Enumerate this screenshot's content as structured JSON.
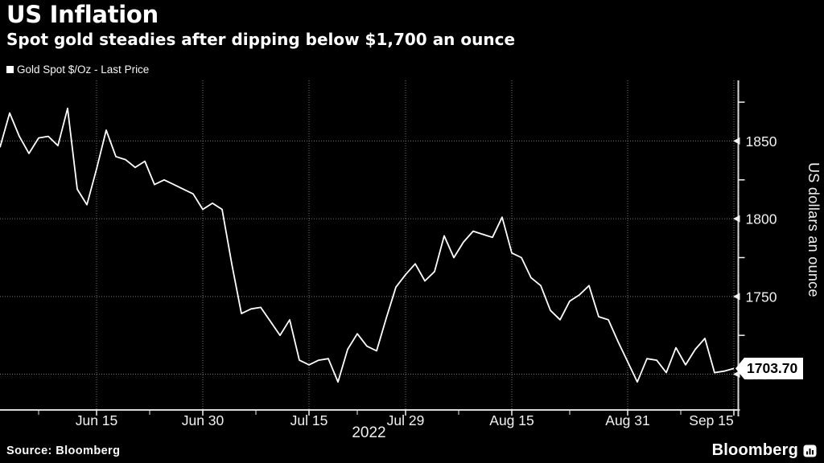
{
  "page": {
    "title": "US Inflation",
    "subtitle": "Spot gold steadies after dipping below $1,700 an ounce"
  },
  "legend": {
    "label": "Gold Spot $/Oz - Last Price",
    "swatch_color": "#ffffff"
  },
  "y_axis": {
    "title": "US dollars an ounce",
    "last_price_label": "1703.70"
  },
  "x_axis": {
    "year_label": "2022"
  },
  "footer": {
    "source_text": "Source: Bloomberg",
    "brand_text": "Bloomberg",
    "brand_icon": "bloomberg-chart-bars-icon"
  },
  "colors": {
    "background": "#000000",
    "line": "#ffffff",
    "axis": "#d9d9d9",
    "grid": "#767676",
    "tick_label": "#f2f2f2",
    "flag_bg": "#ffffff",
    "flag_text": "#000000"
  },
  "chart_data": {
    "type": "line",
    "title": "US Inflation",
    "subtitle": "Spot gold steadies after dipping below $1,700 an ounce",
    "ylabel": "US dollars an ounce",
    "year": "2022",
    "grid": "dotted",
    "legend_position": "top-left",
    "y_axis_side": "right",
    "ylim": [
      1677,
      1889
    ],
    "y_major_ticks": [
      1850,
      1800,
      1750,
      1700
    ],
    "y_minor_ticks": [
      1875,
      1825,
      1775,
      1725
    ],
    "x_tick_labels": [
      "Jun 15",
      "Jun 30",
      "Jul 15",
      "Jul 29",
      "Aug 15",
      "Aug 31",
      "Sep 15"
    ],
    "x_tick_indices": [
      10,
      21,
      32,
      42,
      53,
      65,
      76
    ],
    "x_minor_tick_indices": [
      4,
      15.5,
      26.5,
      37,
      47.5,
      59,
      70.5
    ],
    "last_price": 1703.7,
    "last_price_label": "1703.70",
    "x": [
      "Jun 1",
      "Jun 2",
      "Jun 3",
      "Jun 6",
      "Jun 7",
      "Jun 8",
      "Jun 9",
      "Jun 10",
      "Jun 13",
      "Jun 14",
      "Jun 15",
      "Jun 16",
      "Jun 17",
      "Jun 20",
      "Jun 21",
      "Jun 22",
      "Jun 23",
      "Jun 24",
      "Jun 27",
      "Jun 28",
      "Jun 29",
      "Jun 30",
      "Jul 1",
      "Jul 4",
      "Jul 5",
      "Jul 6",
      "Jul 7",
      "Jul 8",
      "Jul 11",
      "Jul 12",
      "Jul 13",
      "Jul 14",
      "Jul 15",
      "Jul 18",
      "Jul 19",
      "Jul 20",
      "Jul 21",
      "Jul 22",
      "Jul 25",
      "Jul 26",
      "Jul 27",
      "Jul 28",
      "Jul 29",
      "Aug 1",
      "Aug 2",
      "Aug 3",
      "Aug 4",
      "Aug 5",
      "Aug 8",
      "Aug 9",
      "Aug 10",
      "Aug 11",
      "Aug 12",
      "Aug 15",
      "Aug 16",
      "Aug 17",
      "Aug 18",
      "Aug 19",
      "Aug 22",
      "Aug 23",
      "Aug 24",
      "Aug 25",
      "Aug 26",
      "Aug 29",
      "Aug 30",
      "Aug 31",
      "Sep 1",
      "Sep 2",
      "Sep 5",
      "Sep 6",
      "Sep 7",
      "Sep 8",
      "Sep 9",
      "Sep 12",
      "Sep 13",
      "Sep 14",
      "Sep 15"
    ],
    "series": [
      {
        "name": "Gold Spot $/Oz - Last Price",
        "color": "#ffffff",
        "values": [
          1846,
          1868,
          1853,
          1842,
          1852,
          1853,
          1847,
          1871,
          1819,
          1809,
          1832,
          1857,
          1840,
          1838,
          1833,
          1837,
          1822,
          1825,
          1822,
          1819,
          1816,
          1806,
          1810,
          1806,
          1771,
          1739,
          1742,
          1743,
          1734,
          1725,
          1735,
          1709,
          1706,
          1709,
          1710,
          1695,
          1716,
          1726,
          1718,
          1715,
          1736,
          1756,
          1764,
          1771,
          1760,
          1766,
          1789,
          1775,
          1785,
          1792,
          1790,
          1788,
          1801,
          1778,
          1775,
          1762,
          1757,
          1741,
          1735,
          1747,
          1751,
          1757,
          1737,
          1735,
          1721,
          1708,
          1695,
          1710,
          1709,
          1701,
          1717,
          1706,
          1716,
          1723,
          1701,
          1702,
          1703.7
        ]
      }
    ]
  }
}
